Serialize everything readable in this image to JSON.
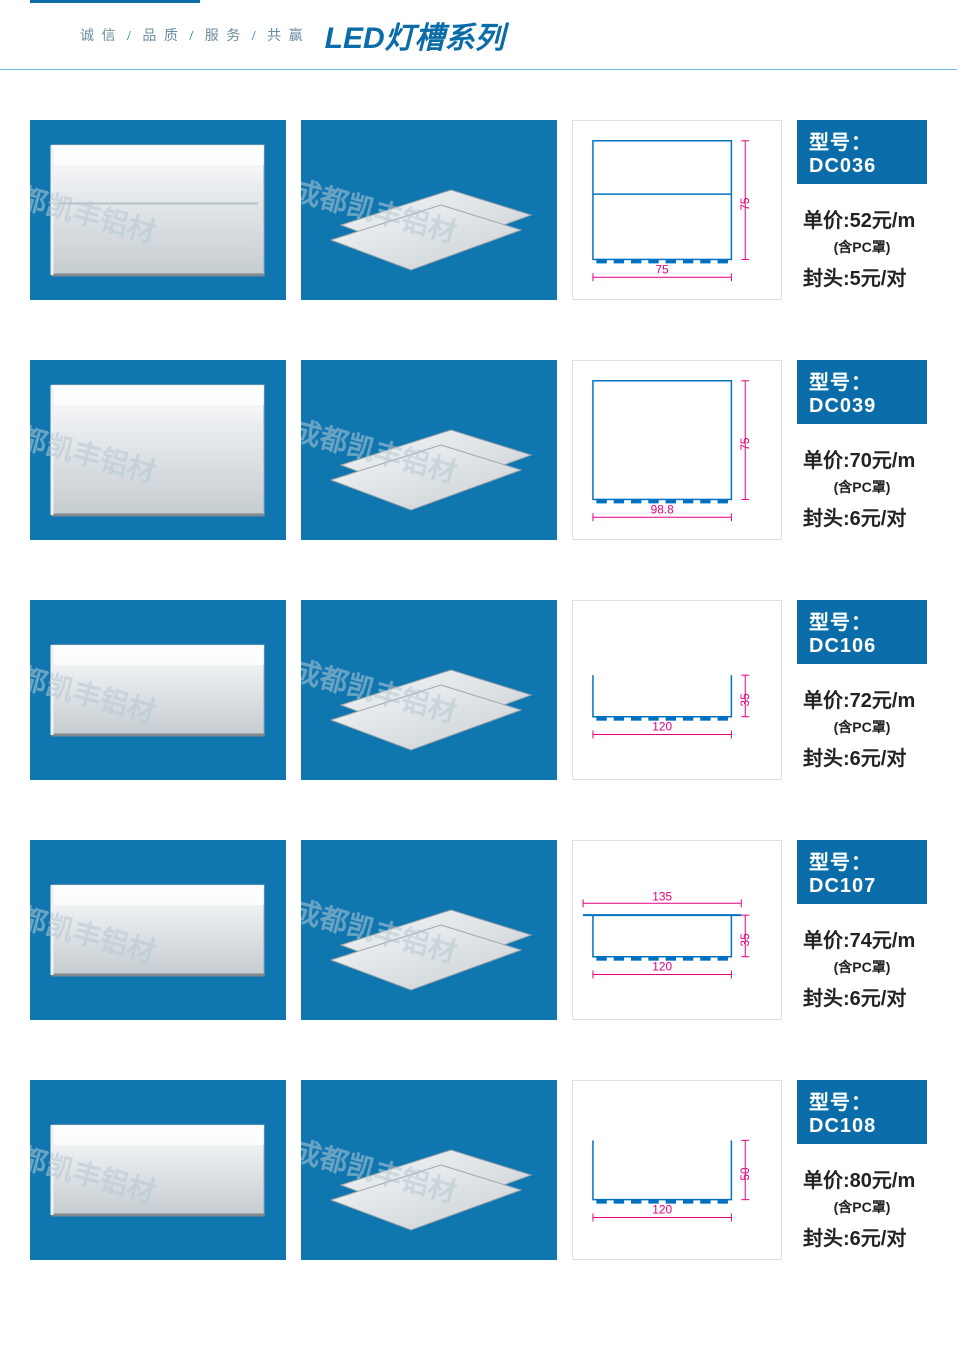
{
  "header": {
    "motto_parts": [
      "诚 信",
      "品 质",
      "服 务",
      "共 赢"
    ],
    "title": "LED灯槽系列"
  },
  "watermark_text": "成都凯丰铝材",
  "colors": {
    "brand_blue": "#0a6ca8",
    "photo_bg": "#1076b0",
    "diagram_stroke": "#0070c0",
    "dimension_pink": "#e4007f",
    "border_gray": "#e0e0e0"
  },
  "products": [
    {
      "model_label": "型号：DC036",
      "price_line": "单价:52元/m",
      "note": "(含PC罩)",
      "cap_line": "封头:5元/对",
      "diagram": {
        "type": "u_tall_shelf",
        "width_mm": "75",
        "height_mm": "75",
        "flange": false
      }
    },
    {
      "model_label": "型号：DC039",
      "price_line": "单价:70元/m",
      "note": "(含PC罩)",
      "cap_line": "封头:6元/对",
      "diagram": {
        "type": "u_tall",
        "width_mm": "98.8",
        "height_mm": "75",
        "flange": false
      }
    },
    {
      "model_label": "型号：DC106",
      "price_line": "单价:72元/m",
      "note": "(含PC罩)",
      "cap_line": "封头:6元/对",
      "diagram": {
        "type": "u_shallow",
        "width_mm": "120",
        "height_mm": "35",
        "flange": false
      }
    },
    {
      "model_label": "型号：DC107",
      "price_line": "单价:74元/m",
      "note": "(含PC罩)",
      "cap_line": "封头:6元/对",
      "diagram": {
        "type": "u_shallow_flange",
        "width_mm": "120",
        "height_mm": "35",
        "flange": true,
        "flange_mm": "135"
      }
    },
    {
      "model_label": "型号：DC108",
      "price_line": "单价:80元/m",
      "note": "(含PC罩)",
      "cap_line": "封头:6元/对",
      "diagram": {
        "type": "u_medium",
        "width_mm": "120",
        "height_mm": "50",
        "flange": false
      }
    }
  ]
}
